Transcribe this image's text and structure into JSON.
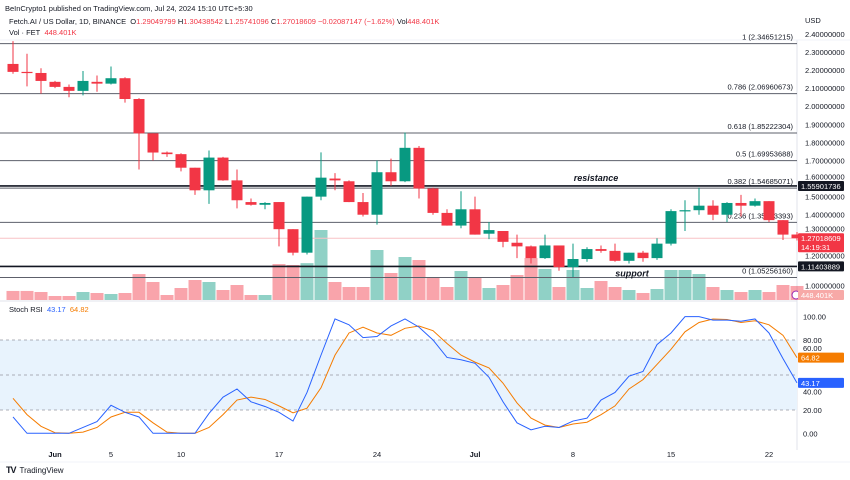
{
  "header": {
    "published": "BeInCrypto1 published on TradingView.com, Jul 24, 2024 15:10 UTC+5:30",
    "symbol": "Fetch.AI / US Dollar, 1D, BINANCE",
    "o_label": "O",
    "o": "1.29049799",
    "h_label": "H",
    "h": "1.30438542",
    "l_label": "L",
    "l": "1.25741096",
    "c_label": "C",
    "c": "1.27018609",
    "change": "−0.02087147 (−1.62%)",
    "vol_label": "Vol",
    "vol": "448.401K",
    "vol_indicator": "Vol · FET",
    "vol_indicator_value": "448.401K"
  },
  "price_axis": {
    "currency": "USD",
    "ticks": [
      "2.40000000",
      "2.30000000",
      "2.20000000",
      "2.10000000",
      "2.00000000",
      "1.90000000",
      "1.80000000",
      "1.70000000",
      "1.60000000",
      "1.50000000",
      "1.40000000",
      "1.30000000",
      "1.20000000",
      "1.00000000"
    ],
    "tick_values": [
      2.4,
      2.3,
      2.2,
      2.1,
      2.0,
      1.9,
      1.8,
      1.7,
      1.6,
      1.5,
      1.4,
      1.3,
      1.2,
      1.0
    ],
    "resistance_price": "1.55901736",
    "support_price": "1.11403889",
    "last_price": "1.27018609",
    "countdown": "14:19:31",
    "volume_badge": "448.401K"
  },
  "fib_levels": [
    {
      "label": "1 (2.34651215)",
      "price": 2.34651215
    },
    {
      "label": "0.786 (2.06960673)",
      "price": 2.06960673
    },
    {
      "label": "0.618 (1.85222304)",
      "price": 1.85222304
    },
    {
      "label": "0.5 (1.69953688)",
      "price": 1.69953688
    },
    {
      "label": "0.382 (1.54685071)",
      "price": 1.54685071
    },
    {
      "label": "0.236 (1.35793393)",
      "price": 1.35793393
    },
    {
      "label": "0 (1.05256160)",
      "price": 1.0525616
    }
  ],
  "annotations": {
    "resistance": {
      "text": "resistance",
      "price": 1.55901736
    },
    "support": {
      "text": "support",
      "price": 1.11403889
    }
  },
  "colors": {
    "up": "#089981",
    "down": "#f23645",
    "stoch_k": "#2962ff",
    "stoch_d": "#f57c00",
    "band": "#e8f3fd"
  },
  "chart_data": {
    "type": "candlestick",
    "columns": [
      "date",
      "open",
      "high",
      "low",
      "close",
      "volume_k"
    ],
    "candles": [
      [
        "2024-05-29",
        2.234,
        2.36,
        2.18,
        2.19,
        290
      ],
      [
        "2024-05-30",
        2.19,
        2.29,
        2.11,
        2.185,
        290
      ],
      [
        "2024-05-31",
        2.184,
        2.21,
        2.07,
        2.14,
        256
      ],
      [
        "2024-06-01",
        2.135,
        2.14,
        2.1,
        2.107,
        128
      ],
      [
        "2024-06-02",
        2.107,
        2.12,
        2.05,
        2.085,
        128
      ],
      [
        "2024-06-03",
        2.085,
        2.195,
        2.06,
        2.14,
        256
      ],
      [
        "2024-06-04",
        2.135,
        2.17,
        2.08,
        2.125,
        224
      ],
      [
        "2024-06-05",
        2.125,
        2.22,
        2.12,
        2.155,
        192
      ],
      [
        "2024-06-06",
        2.155,
        2.16,
        2.02,
        2.04,
        224
      ],
      [
        "2024-06-07",
        2.04,
        2.045,
        1.65,
        1.85,
        830
      ],
      [
        "2024-06-08",
        1.85,
        1.85,
        1.7,
        1.744,
        576
      ],
      [
        "2024-06-09",
        1.744,
        1.75,
        1.72,
        1.735,
        160
      ],
      [
        "2024-06-10",
        1.735,
        1.74,
        1.64,
        1.66,
        384
      ],
      [
        "2024-06-11",
        1.66,
        1.66,
        1.51,
        1.535,
        640
      ],
      [
        "2024-06-12",
        1.535,
        1.755,
        1.46,
        1.716,
        576
      ],
      [
        "2024-06-13",
        1.716,
        1.72,
        1.588,
        1.59,
        320
      ],
      [
        "2024-06-14",
        1.59,
        1.65,
        1.435,
        1.48,
        480
      ],
      [
        "2024-06-15",
        1.47,
        1.49,
        1.45,
        1.455,
        160
      ],
      [
        "2024-06-16",
        1.455,
        1.47,
        1.43,
        1.465,
        160
      ],
      [
        "2024-06-17",
        1.47,
        1.47,
        1.225,
        1.32,
        1150
      ],
      [
        "2024-06-18",
        1.32,
        1.32,
        1.175,
        1.19,
        1120
      ],
      [
        "2024-06-19",
        1.19,
        1.5,
        1.18,
        1.5,
        1180
      ],
      [
        "2024-06-20",
        1.5,
        1.745,
        1.48,
        1.605,
        2240
      ],
      [
        "2024-06-21",
        1.6,
        1.63,
        1.535,
        1.59,
        576
      ],
      [
        "2024-06-22",
        1.585,
        1.59,
        1.47,
        1.47,
        416
      ],
      [
        "2024-06-23",
        1.47,
        1.52,
        1.39,
        1.4,
        416
      ],
      [
        "2024-06-24",
        1.4,
        1.7,
        1.345,
        1.635,
        1600
      ],
      [
        "2024-06-25",
        1.635,
        1.71,
        1.56,
        1.585,
        864
      ],
      [
        "2024-06-26",
        1.585,
        1.855,
        1.58,
        1.77,
        1376
      ],
      [
        "2024-06-27",
        1.77,
        1.78,
        1.49,
        1.545,
        1280
      ],
      [
        "2024-06-28",
        1.545,
        1.55,
        1.4,
        1.41,
        736
      ],
      [
        "2024-06-29",
        1.41,
        1.43,
        1.34,
        1.34,
        416
      ],
      [
        "2024-06-30",
        1.34,
        1.53,
        1.325,
        1.43,
        928
      ],
      [
        "2024-07-01",
        1.43,
        1.5,
        1.29,
        1.29,
        704
      ],
      [
        "2024-07-02",
        1.295,
        1.36,
        1.265,
        1.315,
        384
      ],
      [
        "2024-07-03",
        1.31,
        1.31,
        1.22,
        1.25,
        480
      ],
      [
        "2024-07-04",
        1.245,
        1.29,
        1.16,
        1.225,
        800
      ],
      [
        "2024-07-05",
        1.225,
        1.23,
        1.13,
        1.16,
        1344
      ],
      [
        "2024-07-06",
        1.16,
        1.29,
        1.155,
        1.23,
        992
      ],
      [
        "2024-07-07",
        1.23,
        1.23,
        1.09,
        1.11,
        416
      ],
      [
        "2024-07-08",
        1.11,
        1.24,
        1.055,
        1.155,
        960
      ],
      [
        "2024-07-09",
        1.155,
        1.22,
        1.14,
        1.21,
        384
      ],
      [
        "2024-07-10",
        1.21,
        1.23,
        1.19,
        1.2,
        608
      ],
      [
        "2024-07-11",
        1.2,
        1.24,
        1.14,
        1.145,
        416
      ],
      [
        "2024-07-12",
        1.145,
        1.19,
        1.13,
        1.19,
        320
      ],
      [
        "2024-07-13",
        1.19,
        1.2,
        1.14,
        1.16,
        224
      ],
      [
        "2024-07-14",
        1.16,
        1.27,
        1.15,
        1.24,
        352
      ],
      [
        "2024-07-15",
        1.24,
        1.43,
        1.23,
        1.42,
        960
      ],
      [
        "2024-07-16",
        1.42,
        1.48,
        1.31,
        1.425,
        960
      ],
      [
        "2024-07-17",
        1.425,
        1.55,
        1.4,
        1.45,
        832
      ],
      [
        "2024-07-18",
        1.45,
        1.48,
        1.37,
        1.4,
        416
      ],
      [
        "2024-07-19",
        1.4,
        1.47,
        1.36,
        1.465,
        320
      ],
      [
        "2024-07-20",
        1.465,
        1.51,
        1.39,
        1.45,
        256
      ],
      [
        "2024-07-21",
        1.45,
        1.49,
        1.445,
        1.475,
        320
      ],
      [
        "2024-07-22",
        1.475,
        1.475,
        1.36,
        1.37,
        256
      ],
      [
        "2024-07-23",
        1.37,
        1.37,
        1.26,
        1.29,
        480
      ],
      [
        "2024-07-24",
        1.29049799,
        1.30438542,
        1.25741096,
        1.27018609,
        448.401
      ]
    ],
    "price_range": [
      1.0,
      2.4
    ],
    "x_ticks": [
      {
        "label": "Jun",
        "date": "2024-06-01"
      },
      {
        "label": "5",
        "date": "2024-06-05"
      },
      {
        "label": "10",
        "date": "2024-06-10"
      },
      {
        "label": "17",
        "date": "2024-06-17"
      },
      {
        "label": "24",
        "date": "2024-06-24"
      },
      {
        "label": "Jul",
        "date": "2024-07-01"
      },
      {
        "label": "8",
        "date": "2024-07-08"
      },
      {
        "label": "15",
        "date": "2024-07-15"
      },
      {
        "label": "22",
        "date": "2024-07-22"
      }
    ],
    "stoch_rsi": {
      "title": "Stoch RSI",
      "k_value": "43.17",
      "d_value": "64.82",
      "k": [
        14,
        0,
        0,
        0,
        0,
        5,
        10,
        24,
        18,
        14,
        0,
        0,
        0,
        0,
        17,
        31,
        38,
        27,
        23,
        18,
        10.5,
        35,
        67,
        98,
        93,
        82,
        83,
        92,
        98,
        91,
        80,
        65,
        63,
        60,
        48,
        27,
        9,
        3,
        6,
        5,
        10.5,
        13,
        28.5,
        35,
        49,
        53,
        76,
        86,
        100,
        100,
        97,
        97,
        96,
        98,
        86,
        64,
        43.17
      ],
      "d": [
        30,
        16,
        6,
        0.5,
        0,
        1,
        5,
        14,
        18,
        18,
        9,
        1,
        0,
        0,
        5,
        16,
        28.5,
        31,
        29,
        23.5,
        17.5,
        21.5,
        39,
        67,
        86,
        91,
        86,
        84,
        90,
        92,
        88,
        77,
        67,
        61,
        56,
        43,
        26,
        13,
        7,
        5,
        8,
        9.5,
        16,
        23.5,
        38,
        46,
        59,
        72,
        87,
        95,
        98,
        97.5,
        95,
        96.5,
        93,
        84,
        64.82
      ],
      "ticks": [
        "100.00",
        "80.00",
        "60.00",
        "40.00",
        "20.00",
        "0.00"
      ],
      "tick_values": [
        100,
        80,
        60,
        40,
        20,
        0
      ],
      "bands": [
        80,
        50,
        20
      ],
      "range": [
        0,
        100
      ]
    }
  },
  "footer": {
    "brand": "TradingView"
  }
}
